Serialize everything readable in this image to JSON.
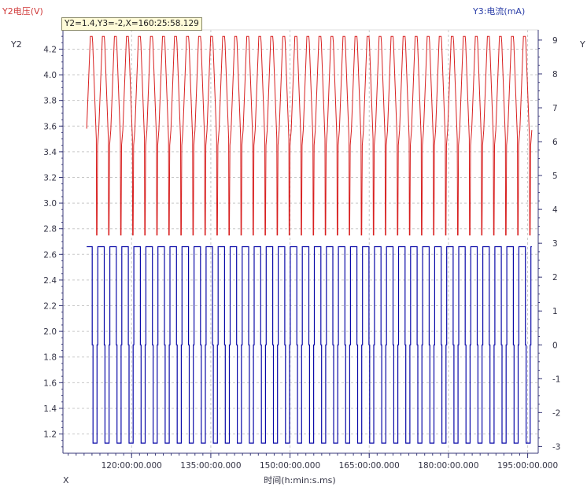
{
  "cursor_readout": "Y2=1.4,Y3=-2,X=160:25:58.129",
  "labels": {
    "left_axis_title": "Y2电压(V)",
    "left_axis_short": "Y2",
    "right_axis_title": "Y3:电流(mA)",
    "right_axis_short": "Y",
    "x_short": "X",
    "x_axis_title": "时间(h:min:s.ms)"
  },
  "colors": {
    "voltage": "#d82020",
    "current": "#0a0aa8",
    "grid": "#c8c8c8",
    "axis": "#3a3a7a"
  },
  "chart_data": {
    "type": "line",
    "xlabel": "时间(h:min:s.ms)",
    "x_ticks": [
      "120:00:00.000",
      "135:00:00.000",
      "150:00:00.000",
      "165:00:00.000",
      "180:00:00.000",
      "195:00:00.000"
    ],
    "y_left": {
      "label": "Y2电压(V)",
      "range": [
        1.05,
        4.35
      ],
      "ticks": [
        1.2,
        1.4,
        1.6,
        1.8,
        2.0,
        2.2,
        2.4,
        2.6,
        2.8,
        3.0,
        3.2,
        3.4,
        3.6,
        3.8,
        4.0,
        4.2
      ]
    },
    "y_right": {
      "label": "Y3:电流(mA)",
      "range": [
        -3.2,
        9.3
      ],
      "ticks": [
        -3,
        -2,
        -1,
        0,
        1,
        2,
        3,
        4,
        5,
        6,
        7,
        8,
        9
      ]
    },
    "x_range_hours": [
      107,
      197
    ],
    "cycles": {
      "start_hours": 111.5,
      "end_hours": 195.8,
      "count": 37
    },
    "series": [
      {
        "name": "Y2电压(V)",
        "axis": "left",
        "voltage_max": 4.3,
        "voltage_min": 2.75,
        "voltage_relax_after_charge": 4.25,
        "voltage_relax_after_discharge": 3.45,
        "voltage_start": 3.58
      },
      {
        "name": "Y3:电流(mA)",
        "axis": "right",
        "charge_current": 2.9,
        "discharge_current": -2.9,
        "rest_current": 0
      }
    ],
    "grid": true
  }
}
